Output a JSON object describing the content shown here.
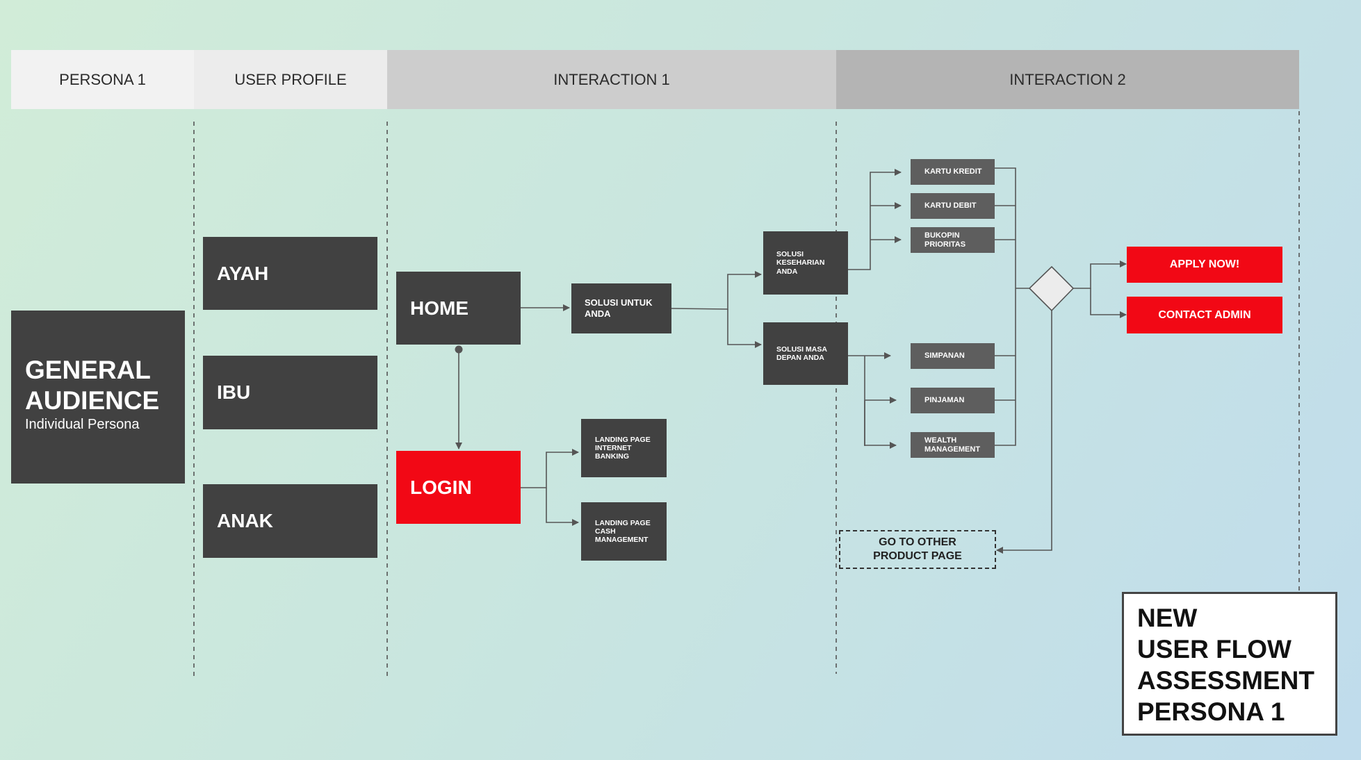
{
  "headers": {
    "persona": "PERSONA 1",
    "user_profile": "USER PROFILE",
    "interaction1": "INTERACTION 1",
    "interaction2": "INTERACTION 2"
  },
  "audience": {
    "title_line1": "GENERAL",
    "title_line2": "AUDIENCE",
    "subtitle": "Individual Persona"
  },
  "profiles": [
    "AYAH",
    "IBU",
    "ANAK"
  ],
  "home": "HOME",
  "login": "LOGIN",
  "solusi_untuk": [
    "SOLUSI UNTUK",
    "ANDA"
  ],
  "landing_ib": [
    "LANDING PAGE",
    "INTERNET",
    "BANKING"
  ],
  "landing_cm": [
    "LANDING PAGE",
    "CASH",
    "MANAGEMENT"
  ],
  "solusi_keseharian": [
    "SOLUSI",
    "KESEHARIAN",
    "ANDA"
  ],
  "solusi_masa": [
    "SOLUSI MASA",
    "DEPAN ANDA"
  ],
  "products": {
    "kartu_kredit": "KARTU KREDIT",
    "kartu_debit": "KARTU DEBIT",
    "bukopin": [
      "BUKOPIN",
      "PRIORITAS"
    ],
    "simpanan": "SIMPANAN",
    "pinjaman": "PINJAMAN",
    "wealth": [
      "WEALTH",
      "MANAGEMENT"
    ]
  },
  "cta": {
    "apply": "APPLY NOW!",
    "contact": "CONTACT ADMIN"
  },
  "other_product": [
    "GO TO OTHER",
    "PRODUCT PAGE"
  ],
  "title_card": [
    "NEW",
    "USER FLOW",
    "ASSESSMENT",
    "PERSONA 1"
  ],
  "colors": {
    "dark_box": "#414141",
    "product_box": "#5e5e5e",
    "accent_red": "#f20815",
    "connector": "#555555"
  }
}
